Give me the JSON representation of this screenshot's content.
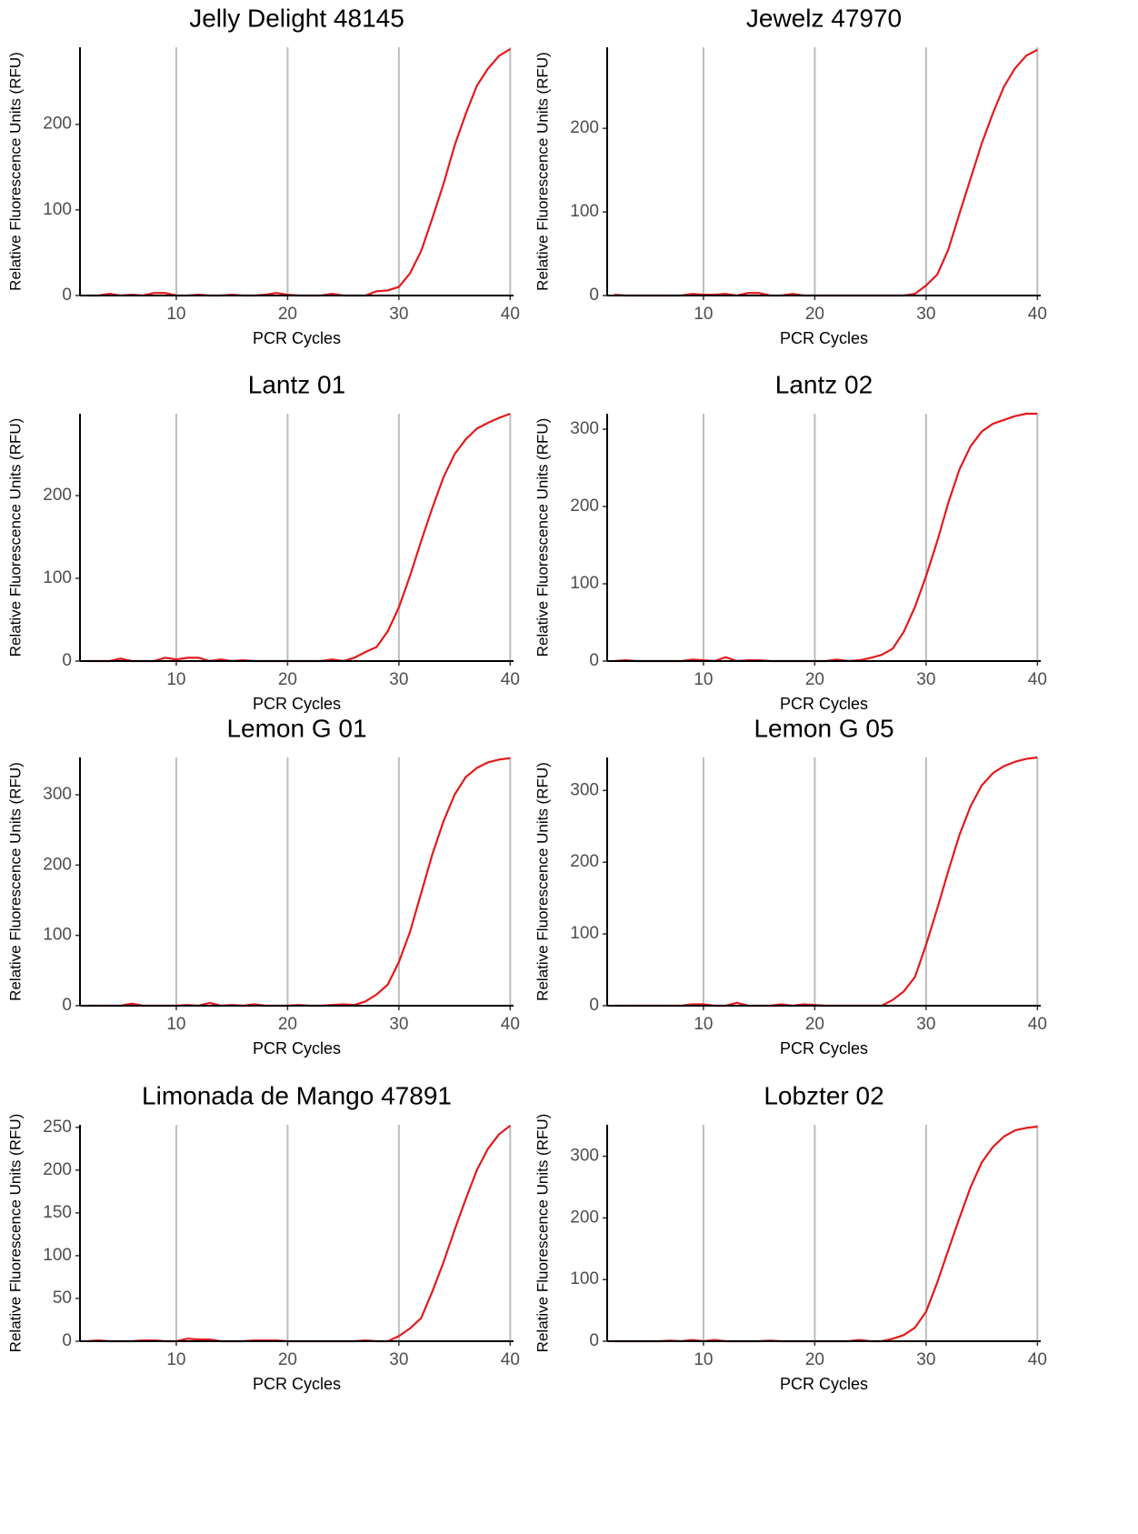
{
  "chart_data": [
    {
      "type": "line",
      "title": "Jelly Delight 48145",
      "x_label": "PCR Cycles",
      "y_label": "Relative Fluorescence Units (RFU)",
      "x": [
        2,
        3,
        4,
        5,
        6,
        7,
        8,
        9,
        10,
        11,
        12,
        13,
        14,
        15,
        16,
        17,
        18,
        19,
        20,
        21,
        22,
        23,
        24,
        25,
        26,
        27,
        28,
        29,
        30,
        31,
        32,
        33,
        34,
        35,
        36,
        37,
        38,
        39,
        40
      ],
      "series": [
        {
          "color": "#e31a1c",
          "values": [
            0,
            0,
            2,
            0,
            1,
            0,
            3,
            3,
            0,
            0,
            1,
            0,
            0,
            1,
            0,
            0,
            1,
            3,
            1,
            0,
            0,
            0,
            2,
            0,
            0,
            0,
            5,
            6,
            10,
            26,
            52,
            90,
            130,
            175,
            212,
            245,
            265,
            280,
            288
          ]
        }
      ],
      "xlim": [
        1.35,
        40.3
      ],
      "xticks": [
        10,
        20,
        30,
        40
      ],
      "ylim": [
        0,
        290
      ],
      "yticks": [
        0,
        100,
        200
      ],
      "grid": "x"
    },
    {
      "type": "line",
      "title": "Jewelz 47970",
      "x_label": "PCR Cycles",
      "y_label": "Relative Fluorescence Units (RFU)",
      "x": [
        2,
        3,
        4,
        5,
        6,
        7,
        8,
        9,
        10,
        11,
        12,
        13,
        14,
        15,
        16,
        17,
        18,
        19,
        20,
        21,
        22,
        23,
        24,
        25,
        26,
        27,
        28,
        29,
        30,
        31,
        32,
        33,
        34,
        35,
        36,
        37,
        38,
        39,
        40
      ],
      "series": [
        {
          "color": "#e31a1c",
          "values": [
            1,
            0,
            0,
            0,
            0,
            0,
            0,
            2,
            1,
            1,
            2,
            0,
            3,
            3,
            0,
            0,
            2,
            0,
            0,
            0,
            0,
            0,
            0,
            0,
            0,
            0,
            0,
            2,
            12,
            25,
            55,
            98,
            140,
            182,
            218,
            250,
            272,
            287,
            294
          ]
        }
      ],
      "xlim": [
        1.35,
        40.3
      ],
      "xticks": [
        10,
        20,
        30,
        40
      ],
      "ylim": [
        0,
        297
      ],
      "yticks": [
        0,
        100,
        200
      ],
      "grid": "x"
    },
    {
      "type": "line",
      "title": "Lantz 01",
      "x_label": "PCR Cycles",
      "y_label": "Relative Fluorescence Units (RFU)",
      "x": [
        2,
        3,
        4,
        5,
        6,
        7,
        8,
        9,
        10,
        11,
        12,
        13,
        14,
        15,
        16,
        17,
        18,
        19,
        20,
        21,
        22,
        23,
        24,
        25,
        26,
        27,
        28,
        29,
        30,
        31,
        32,
        33,
        34,
        35,
        36,
        37,
        38,
        39,
        40
      ],
      "series": [
        {
          "color": "#e31a1c",
          "values": [
            0,
            0,
            0,
            3,
            0,
            0,
            0,
            4,
            2,
            4,
            4,
            0,
            2,
            0,
            1,
            0,
            0,
            0,
            0,
            0,
            0,
            0,
            2,
            0,
            4,
            11,
            17,
            36,
            65,
            103,
            145,
            185,
            222,
            250,
            268,
            281,
            288,
            294,
            299
          ]
        }
      ],
      "xlim": [
        1.35,
        40.3
      ],
      "xticks": [
        10,
        20,
        30,
        40
      ],
      "ylim": [
        0,
        299
      ],
      "yticks": [
        0,
        100,
        200
      ],
      "grid": "x"
    },
    {
      "type": "line",
      "title": "Lantz 02",
      "x_label": "PCR Cycles",
      "y_label": "Relative Fluorescence Units (RFU)",
      "x": [
        2,
        3,
        4,
        5,
        6,
        7,
        8,
        9,
        10,
        11,
        12,
        13,
        14,
        15,
        16,
        17,
        18,
        19,
        20,
        21,
        22,
        23,
        24,
        25,
        26,
        27,
        28,
        29,
        30,
        31,
        32,
        33,
        34,
        35,
        36,
        37,
        38,
        39,
        40
      ],
      "series": [
        {
          "color": "#e31a1c",
          "values": [
            0,
            1,
            0,
            0,
            0,
            0,
            0,
            2,
            1,
            0,
            5,
            0,
            1,
            1,
            0,
            0,
            0,
            0,
            0,
            0,
            2,
            0,
            1,
            4,
            8,
            16,
            38,
            70,
            110,
            155,
            205,
            248,
            278,
            297,
            307,
            312,
            317,
            320,
            320
          ]
        }
      ],
      "xlim": [
        1.35,
        40.3
      ],
      "xticks": [
        10,
        20,
        30,
        40
      ],
      "ylim": [
        0,
        320
      ],
      "yticks": [
        0,
        100,
        200,
        300
      ],
      "grid": "x"
    },
    {
      "type": "line",
      "title": "Lemon G 01",
      "x_label": "PCR Cycles",
      "y_label": "Relative Fluorescence Units (RFU)",
      "x": [
        2,
        3,
        4,
        5,
        6,
        7,
        8,
        9,
        10,
        11,
        12,
        13,
        14,
        15,
        16,
        17,
        18,
        19,
        20,
        21,
        22,
        23,
        24,
        25,
        26,
        27,
        28,
        29,
        30,
        31,
        32,
        33,
        34,
        35,
        36,
        37,
        38,
        39,
        40
      ],
      "series": [
        {
          "color": "#e31a1c",
          "values": [
            0,
            0,
            0,
            0,
            3,
            0,
            0,
            0,
            0,
            1,
            0,
            4,
            0,
            1,
            0,
            2,
            0,
            0,
            0,
            1,
            0,
            0,
            1,
            2,
            1,
            6,
            16,
            30,
            62,
            105,
            160,
            215,
            262,
            300,
            325,
            338,
            346,
            350,
            352
          ]
        }
      ],
      "xlim": [
        1.35,
        40.3
      ],
      "xticks": [
        10,
        20,
        30,
        40
      ],
      "ylim": [
        0,
        353
      ],
      "yticks": [
        0,
        100,
        200,
        300
      ],
      "grid": "x"
    },
    {
      "type": "line",
      "title": "Lemon G 05",
      "x_label": "PCR Cycles",
      "y_label": "Relative Fluorescence Units (RFU)",
      "x": [
        2,
        3,
        4,
        5,
        6,
        7,
        8,
        9,
        10,
        11,
        12,
        13,
        14,
        15,
        16,
        17,
        18,
        19,
        20,
        21,
        22,
        23,
        24,
        25,
        26,
        27,
        28,
        29,
        30,
        31,
        32,
        33,
        34,
        35,
        36,
        37,
        38,
        39,
        40
      ],
      "series": [
        {
          "color": "#e31a1c",
          "values": [
            0,
            0,
            0,
            0,
            0,
            0,
            0,
            2,
            2,
            0,
            0,
            4,
            0,
            0,
            0,
            2,
            0,
            2,
            1,
            0,
            0,
            0,
            0,
            0,
            0,
            8,
            20,
            40,
            85,
            135,
            188,
            238,
            278,
            307,
            324,
            334,
            340,
            344,
            346
          ]
        }
      ],
      "xlim": [
        1.35,
        40.3
      ],
      "xticks": [
        10,
        20,
        30,
        40
      ],
      "ylim": [
        0,
        346
      ],
      "yticks": [
        0,
        100,
        200,
        300
      ],
      "grid": "x"
    },
    {
      "type": "line",
      "title": "Limonada de Mango 47891",
      "x_label": "PCR Cycles",
      "y_label": "Relative Fluorescence Units (RFU)",
      "x": [
        2,
        3,
        4,
        5,
        6,
        7,
        8,
        9,
        10,
        11,
        12,
        13,
        14,
        15,
        16,
        17,
        18,
        19,
        20,
        21,
        22,
        23,
        24,
        25,
        26,
        27,
        28,
        29,
        30,
        31,
        32,
        33,
        34,
        35,
        36,
        37,
        38,
        39,
        40
      ],
      "series": [
        {
          "color": "#e31a1c",
          "values": [
            0,
            1,
            0,
            0,
            0,
            1,
            1,
            0,
            0,
            3,
            2,
            2,
            0,
            0,
            0,
            1,
            1,
            1,
            0,
            0,
            0,
            0,
            0,
            0,
            0,
            1,
            0,
            0,
            6,
            15,
            27,
            58,
            92,
            130,
            166,
            200,
            225,
            242,
            252
          ]
        }
      ],
      "xlim": [
        1.35,
        40.3
      ],
      "xticks": [
        10,
        20,
        30,
        40
      ],
      "ylim": [
        0,
        253
      ],
      "yticks": [
        0,
        50,
        100,
        150,
        200,
        250
      ],
      "grid": "x"
    },
    {
      "type": "line",
      "title": "Lobzter 02",
      "x_label": "PCR Cycles",
      "y_label": "Relative Fluorescence Units (RFU)",
      "x": [
        2,
        3,
        4,
        5,
        6,
        7,
        8,
        9,
        10,
        11,
        12,
        13,
        14,
        15,
        16,
        17,
        18,
        19,
        20,
        21,
        22,
        23,
        24,
        25,
        26,
        27,
        28,
        29,
        30,
        31,
        32,
        33,
        34,
        35,
        36,
        37,
        38,
        39,
        40
      ],
      "series": [
        {
          "color": "#e31a1c",
          "values": [
            0,
            0,
            0,
            0,
            0,
            1,
            0,
            2,
            0,
            2,
            0,
            0,
            0,
            0,
            1,
            0,
            0,
            0,
            0,
            0,
            0,
            0,
            2,
            0,
            0,
            4,
            10,
            22,
            48,
            95,
            148,
            200,
            250,
            290,
            315,
            332,
            342,
            346,
            348
          ]
        }
      ],
      "xlim": [
        1.35,
        40.3
      ],
      "xticks": [
        10,
        20,
        30,
        40
      ],
      "ylim": [
        0,
        351
      ],
      "yticks": [
        0,
        100,
        200,
        300
      ],
      "grid": "x"
    }
  ]
}
